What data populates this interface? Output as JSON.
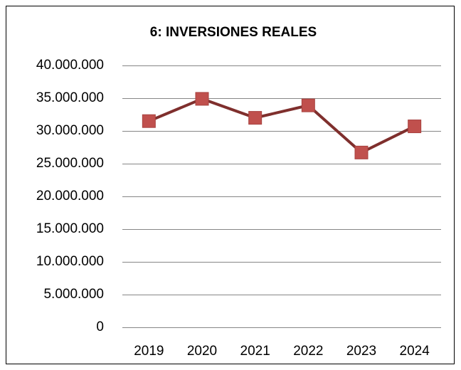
{
  "chart_data": {
    "type": "line",
    "title": "6: INVERSIONES REALES",
    "categories": [
      "2019",
      "2020",
      "2021",
      "2022",
      "2023",
      "2024"
    ],
    "values": [
      31500000,
      34900000,
      32000000,
      33900000,
      26700000,
      30700000
    ],
    "color": "#7f2f2d",
    "marker_color": "#c0504d",
    "ylim": [
      0,
      40000000
    ],
    "yticks": [
      0,
      {
        "value": 5000000,
        "label": "5.000.000"
      },
      {
        "value": 10000000,
        "label": "10.000.000"
      },
      {
        "value": 15000000,
        "label": "15.000.000"
      },
      {
        "value": 20000000,
        "label": "20.000.000"
      },
      {
        "value": 25000000,
        "label": "25.000.000"
      },
      {
        "value": 30000000,
        "label": "30.000.000"
      },
      {
        "value": 35000000,
        "label": "35.000.000"
      },
      {
        "value": 40000000,
        "label": "40.000.000"
      }
    ],
    "grid": true
  }
}
